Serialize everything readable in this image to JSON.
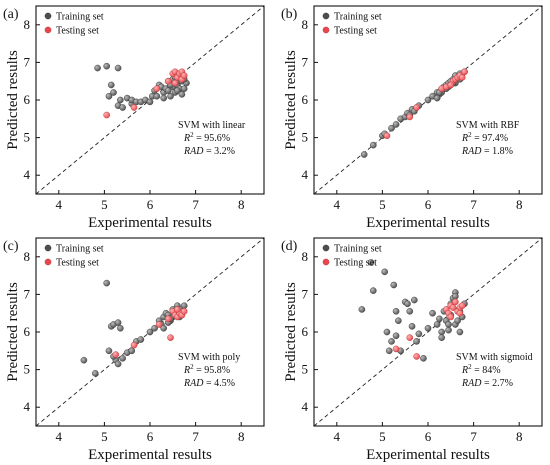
{
  "chart_data": [
    {
      "type": "scatter",
      "panel_label": "(a)",
      "xlabel": "Experimental results",
      "ylabel": "Predicted results",
      "xlim": [
        3.5,
        8.5
      ],
      "ylim": [
        3.5,
        8.5
      ],
      "xticks": [
        "4",
        "5",
        "6",
        "7",
        "8"
      ],
      "yticks": [
        "4",
        "5",
        "6",
        "7",
        "8"
      ],
      "legend_position": "top-left",
      "reference_line": "y = x (dashed)",
      "annotation": {
        "model": "SVM with linear",
        "r2_prefix": "R",
        "r2_value": " = 95.6%",
        "rad_label": "RAD",
        "rad_value": " = 3.2%"
      },
      "series": [
        {
          "name": "Training set",
          "color": "#4d4d4d",
          "x": [
            4.85,
            5.05,
            5.3,
            5.1,
            5.15,
            5.2,
            5.3,
            5.35,
            5.4,
            5.5,
            5.6,
            5.6,
            5.7,
            5.8,
            5.9,
            6.0,
            6.05,
            6.1,
            6.15,
            6.2,
            6.25,
            6.3,
            6.35,
            6.4,
            6.45,
            6.5,
            6.5,
            6.55,
            6.6,
            6.6,
            6.65,
            6.7,
            6.7,
            6.75,
            6.8,
            6.3,
            6.4,
            6.45,
            6.55,
            6.6,
            6.7,
            6.75
          ],
          "y": [
            6.85,
            6.9,
            6.85,
            6.1,
            6.4,
            6.2,
            5.85,
            6.0,
            5.8,
            6.05,
            5.9,
            6.0,
            5.95,
            5.95,
            6.0,
            5.95,
            6.1,
            6.25,
            6.1,
            6.4,
            6.35,
            6.2,
            6.3,
            6.5,
            6.1,
            6.35,
            6.55,
            6.2,
            6.4,
            6.5,
            6.3,
            6.5,
            6.6,
            6.3,
            6.45,
            6.05,
            6.25,
            6.4,
            6.6,
            6.25,
            6.15,
            6.55
          ]
        },
        {
          "name": "Testing set",
          "color": "#e8474c",
          "x": [
            5.05,
            5.65,
            6.15,
            6.4,
            6.5,
            6.55,
            6.6,
            6.65,
            6.7,
            6.7,
            6.75,
            6.55
          ],
          "y": [
            5.6,
            5.8,
            6.3,
            6.5,
            6.7,
            6.75,
            6.6,
            6.7,
            6.55,
            6.75,
            6.65,
            6.45
          ]
        }
      ]
    },
    {
      "type": "scatter",
      "panel_label": "(b)",
      "xlabel": "Experimental results",
      "ylabel": "Predicted results",
      "xlim": [
        3.5,
        8.5
      ],
      "ylim": [
        3.5,
        8.5
      ],
      "xticks": [
        "4",
        "5",
        "6",
        "7",
        "8"
      ],
      "yticks": [
        "4",
        "5",
        "6",
        "7",
        "8"
      ],
      "legend_position": "top-left",
      "reference_line": "y = x (dashed)",
      "annotation": {
        "model": "SVM with RBF",
        "r2_prefix": "R",
        "r2_value": " = 97.4%",
        "rad_label": "RAD",
        "rad_value": " = 1.8%"
      },
      "series": [
        {
          "name": "Training set",
          "color": "#4d4d4d",
          "x": [
            4.6,
            4.8,
            5.0,
            5.05,
            5.2,
            5.3,
            5.4,
            5.5,
            5.55,
            5.6,
            5.65,
            5.7,
            5.75,
            5.8,
            6.0,
            6.1,
            6.2,
            6.25,
            6.3,
            6.35,
            6.4,
            6.45,
            6.5,
            6.5,
            6.55,
            6.6,
            6.6,
            6.65,
            6.7,
            6.7,
            6.75,
            6.8,
            6.3,
            6.4,
            6.45,
            6.55,
            6.6,
            6.7,
            6.2,
            6.25
          ],
          "y": [
            4.55,
            4.8,
            5.05,
            5.1,
            5.25,
            5.35,
            5.5,
            5.55,
            5.65,
            5.6,
            5.75,
            5.7,
            5.8,
            5.85,
            6.0,
            6.1,
            6.2,
            6.15,
            6.3,
            6.35,
            6.4,
            6.45,
            6.5,
            6.4,
            6.55,
            6.55,
            6.45,
            6.6,
            6.65,
            6.55,
            6.7,
            6.75,
            6.2,
            6.3,
            6.35,
            6.45,
            6.65,
            6.7,
            6.05,
            6.2
          ]
        },
        {
          "name": "Testing set",
          "color": "#e8474c",
          "x": [
            5.1,
            5.6,
            5.75,
            6.3,
            6.4,
            6.55,
            6.6,
            6.65,
            6.7,
            6.75,
            6.8,
            6.5
          ],
          "y": [
            5.05,
            5.55,
            5.8,
            6.3,
            6.35,
            6.5,
            6.55,
            6.6,
            6.65,
            6.6,
            6.75,
            6.4
          ]
        }
      ]
    },
    {
      "type": "scatter",
      "panel_label": "(c)",
      "xlabel": "Experimental results",
      "ylabel": "Predicted results",
      "xlim": [
        3.5,
        8.5
      ],
      "ylim": [
        3.5,
        8.5
      ],
      "xticks": [
        "4",
        "5",
        "6",
        "7",
        "8"
      ],
      "yticks": [
        "4",
        "5",
        "6",
        "7",
        "8"
      ],
      "legend_position": "top-left",
      "reference_line": "y = x (dashed)",
      "annotation": {
        "model": "SVM with poly",
        "r2_prefix": "R",
        "r2_value": " = 95.8%",
        "rad_label": "RAD",
        "rad_value": " = 4.5%"
      },
      "series": [
        {
          "name": "Training set",
          "color": "#4d4d4d",
          "x": [
            4.55,
            4.8,
            5.05,
            5.1,
            5.15,
            5.2,
            5.25,
            5.3,
            5.35,
            5.4,
            5.5,
            5.6,
            5.7,
            5.8,
            6.0,
            6.1,
            6.2,
            6.25,
            6.3,
            6.35,
            6.4,
            6.45,
            6.5,
            6.5,
            6.55,
            6.6,
            6.6,
            6.65,
            6.7,
            6.7,
            6.75,
            6.3,
            6.4,
            6.45,
            6.55,
            6.6,
            6.7,
            5.2,
            5.3
          ],
          "y": [
            5.25,
            4.9,
            7.3,
            5.5,
            6.15,
            6.2,
            5.25,
            6.25,
            6.1,
            5.3,
            5.45,
            5.5,
            5.75,
            5.8,
            6.0,
            6.1,
            6.3,
            6.2,
            6.4,
            6.5,
            6.45,
            6.3,
            6.6,
            6.4,
            6.5,
            6.7,
            6.55,
            6.4,
            6.6,
            6.5,
            6.7,
            6.1,
            6.25,
            6.35,
            6.45,
            6.6,
            6.55,
            5.35,
            5.15
          ]
        },
        {
          "name": "Testing set",
          "color": "#e8474c",
          "x": [
            5.25,
            5.65,
            6.2,
            6.4,
            6.5,
            6.55,
            6.6,
            6.65,
            6.7,
            6.45,
            6.6,
            6.75
          ],
          "y": [
            5.4,
            5.65,
            6.2,
            6.35,
            6.55,
            6.45,
            6.4,
            6.5,
            6.45,
            5.85,
            6.6,
            6.55
          ]
        }
      ]
    },
    {
      "type": "scatter",
      "panel_label": "(d)",
      "xlabel": "Experimental results",
      "ylabel": "Predicted results",
      "xlim": [
        3.5,
        8.5
      ],
      "ylim": [
        3.5,
        8.5
      ],
      "xticks": [
        "4",
        "5",
        "6",
        "7",
        "8"
      ],
      "yticks": [
        "4",
        "5",
        "6",
        "7",
        "8"
      ],
      "legend_position": "top-left",
      "reference_line": "y = x (dashed)",
      "annotation": {
        "model": "SVM with sigmoid",
        "r2_prefix": "R",
        "r2_value": " = 84%",
        "rad_label": "RAD",
        "rad_value": " = 2.7%"
      },
      "series": [
        {
          "name": "Training set",
          "color": "#4d4d4d",
          "x": [
            4.55,
            4.75,
            4.8,
            5.05,
            5.1,
            5.15,
            5.2,
            5.25,
            5.3,
            5.35,
            5.4,
            5.5,
            5.55,
            5.6,
            5.7,
            5.75,
            5.8,
            5.9,
            6.0,
            6.1,
            6.2,
            6.25,
            6.3,
            6.35,
            6.4,
            6.45,
            6.5,
            6.5,
            6.55,
            6.6,
            6.6,
            6.65,
            6.7,
            6.7,
            6.75,
            6.8,
            6.3,
            6.45,
            6.6,
            5.3,
            5.65
          ],
          "y": [
            6.6,
            7.85,
            7.1,
            7.6,
            6.0,
            5.5,
            5.75,
            7.25,
            6.55,
            6.3,
            5.5,
            6.8,
            6.75,
            6.55,
            6.85,
            5.75,
            5.95,
            5.3,
            6.1,
            6.5,
            6.2,
            6.35,
            6.0,
            6.55,
            6.3,
            6.05,
            6.75,
            6.45,
            6.9,
            6.2,
            7.05,
            6.3,
            6.55,
            6.0,
            6.4,
            6.75,
            5.85,
            6.2,
            6.95,
            5.9,
            6.15
          ]
        },
        {
          "name": "Testing set",
          "color": "#e8474c",
          "x": [
            5.3,
            5.6,
            5.75,
            6.4,
            6.45,
            6.5,
            6.55,
            6.6,
            6.65,
            6.7,
            6.75,
            6.5,
            6.7
          ],
          "y": [
            5.55,
            5.85,
            5.35,
            6.6,
            6.5,
            6.7,
            6.65,
            6.8,
            6.55,
            6.65,
            6.7,
            6.4,
            6.5
          ]
        }
      ]
    }
  ]
}
